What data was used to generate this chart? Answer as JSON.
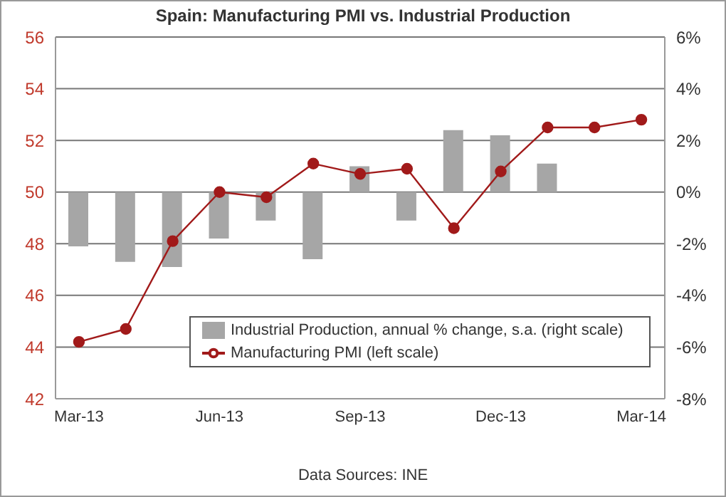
{
  "chart_data": {
    "type": "bar",
    "title": "Spain: Manufacturing PMI vs. Industrial Production",
    "categories": [
      "Mar-13",
      null,
      null,
      "Jun-13",
      null,
      null,
      "Sep-13",
      null,
      null,
      "Dec-13",
      null,
      null,
      "Mar-14"
    ],
    "series": [
      {
        "name": "Industrial Production, annual % change, s.a. (right scale)",
        "axis": "y2",
        "color": "#a6a6a6",
        "values": [
          -2.1,
          -2.7,
          -2.9,
          -1.8,
          -1.1,
          -2.6,
          1.0,
          -1.1,
          2.4,
          2.2,
          1.1,
          null,
          null
        ]
      },
      {
        "name": "Manufacturing PMI (left scale)",
        "type": "line",
        "color": "#a11a1a",
        "values": [
          44.2,
          44.7,
          48.1,
          50.0,
          49.8,
          51.1,
          50.7,
          50.9,
          48.6,
          50.8,
          52.5,
          52.5,
          52.8
        ]
      }
    ],
    "ylim": [
      42,
      56
    ],
    "yticks": [
      42,
      44,
      46,
      48,
      50,
      52,
      54,
      56
    ],
    "y2lim": [
      -8,
      6
    ],
    "y2ticks": [
      {
        "value": -8,
        "label": "-8%"
      },
      {
        "value": -6,
        "label": "-6%"
      },
      {
        "value": -4,
        "label": "-4%"
      },
      {
        "value": -2,
        "label": "-2%"
      },
      {
        "value": 0,
        "label": "0%"
      },
      {
        "value": 2,
        "label": "2%"
      },
      {
        "value": 4,
        "label": "4%"
      },
      {
        "value": 6,
        "label": "6%"
      }
    ],
    "grid": "y",
    "legend": "bottom",
    "marker": "circle",
    "annotations": [
      "Data Sources: INE"
    ]
  }
}
